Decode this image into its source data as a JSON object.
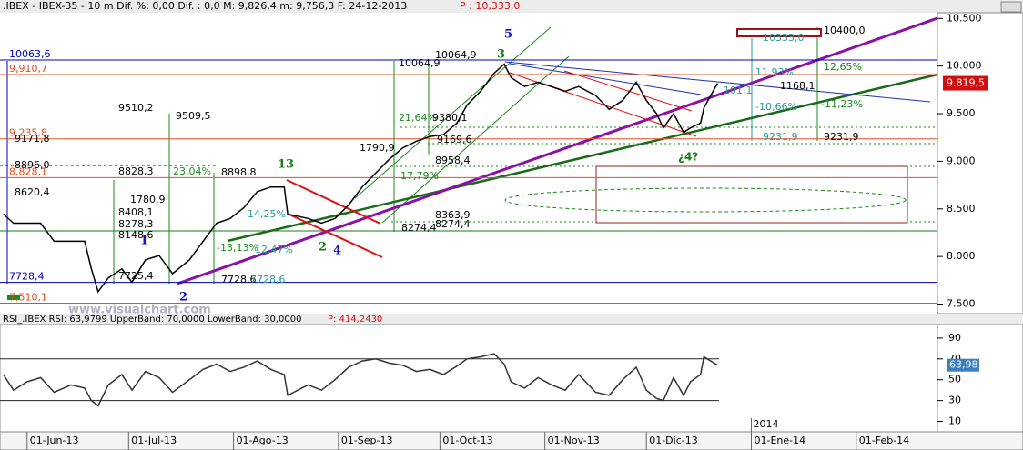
{
  "chart_data": [
    {
      "type": "line",
      "title": ".IBEX - IBEX-35 -  10 m Dif. %: 0,00 Dif. : 0,0 M: 9,826,4 m: 9,756,3 F: 24-12-2013 ",
      "title_price": "P : 10,333,0",
      "color": "#000000",
      "x": [
        "2013-05-25",
        "2013-05-28",
        "2013-06-01",
        "2013-06-05",
        "2013-06-09",
        "2013-06-14",
        "2013-06-18",
        "2013-06-20",
        "2013-06-22",
        "2013-06-25",
        "2013-06-29",
        "2013-07-02",
        "2013-07-06",
        "2013-07-10",
        "2013-07-14",
        "2013-07-19",
        "2013-07-23",
        "2013-07-27",
        "2013-07-31",
        "2013-08-04",
        "2013-08-08",
        "2013-08-12",
        "2013-08-16",
        "2013-08-17",
        "2013-08-23",
        "2013-08-27",
        "2013-08-31",
        "2013-09-04",
        "2013-09-08",
        "2013-09-12",
        "2013-09-16",
        "2013-09-20",
        "2013-09-24",
        "2013-09-28",
        "2013-10-02",
        "2013-10-06",
        "2013-10-09",
        "2013-10-13",
        "2013-10-17",
        "2013-10-20",
        "2013-10-22",
        "2013-10-26",
        "2013-10-30",
        "2013-11-03",
        "2013-11-07",
        "2013-11-11",
        "2013-11-16",
        "2013-11-20",
        "2013-11-24",
        "2013-11-28",
        "2013-12-01",
        "2013-12-04",
        "2013-12-06",
        "2013-12-09",
        "2013-12-12",
        "2013-12-14",
        "2013-12-17",
        "2013-12-18",
        "2013-12-22"
      ],
      "values": [
        8445,
        8350,
        8350,
        8350,
        8160,
        8160,
        8160,
        7870,
        7630,
        7775,
        7870,
        7730,
        7965,
        8010,
        7820,
        7965,
        8160,
        8350,
        8400,
        8510,
        8680,
        8730,
        8730,
        8445,
        8400,
        8350,
        8400,
        8540,
        8730,
        8875,
        9020,
        9140,
        9210,
        9260,
        9280,
        9400,
        9590,
        9735,
        9925,
        10020,
        9880,
        9785,
        9830,
        9785,
        9735,
        9785,
        9690,
        9545,
        9640,
        9830,
        9640,
        9500,
        9350,
        9500,
        9305,
        9350,
        9400,
        9560,
        9819.5
      ],
      "last_label": "9.819,5",
      "xlim": [
        "2013-05-24",
        "2014-02-25"
      ],
      "xticks": [
        {
          "value": "2013-06-01",
          "label": "01-Jun-13"
        },
        {
          "value": "2013-07-01",
          "label": "01-Jul-13"
        },
        {
          "value": "2013-08-01",
          "label": "01-Ago-13"
        },
        {
          "value": "2013-09-01",
          "label": "01-Sep-13"
        },
        {
          "value": "2013-10-01",
          "label": "01-Oct-13"
        },
        {
          "value": "2013-11-01",
          "label": "01-Nov-13"
        },
        {
          "value": "2013-12-01",
          "label": "01-Dic-13"
        },
        {
          "value": "2014-01-01",
          "label": "01-Ene-14"
        },
        {
          "value": "2014-02-01",
          "label": "01-Feb-14"
        }
      ],
      "year_label": "2014",
      "ylim": [
        7400,
        10560
      ],
      "yticks": [
        {
          "value": 7500,
          "label": "7.500"
        },
        {
          "value": 8000,
          "label": "8.000"
        },
        {
          "value": 8500,
          "label": "8.500"
        },
        {
          "value": 9000,
          "label": "9.000"
        },
        {
          "value": 9500,
          "label": "9.500"
        },
        {
          "value": 10000,
          "label": "10.000"
        },
        {
          "value": 10500,
          "label": "10.500"
        }
      ],
      "levels": [
        {
          "value": 10063.6,
          "label": "10063,6",
          "color": "#0000c0"
        },
        {
          "value": 9910.7,
          "label": "9,910,7",
          "color": "#e05020"
        },
        {
          "value": 9235.8,
          "label": "9,235,8",
          "color": "#e05020"
        },
        {
          "value": 8828.1,
          "label": "8,828,1",
          "color": "#e05020"
        },
        {
          "value": 7728.4,
          "label": "7728,4",
          "color": "#0000c0"
        },
        {
          "value": 7510.1,
          "label": "7,510,1",
          "color": "#e05020"
        }
      ],
      "annotations": [
        "10064,9",
        "10064,9",
        "9510,2",
        "9509,5",
        "21,64%",
        "9380,1",
        "9169,6",
        "1790,9",
        "8958,4",
        "17,79%",
        "8896,0",
        "8828,3",
        "23,04%",
        "8898,8",
        "8620,4",
        "1780,9",
        "8408,1",
        "8278,3",
        "8148,6",
        "14,25%",
        "-13,13%",
        "12,47%",
        "8363,9",
        "8274,4",
        "8274,4",
        "7725,4",
        "7728,6",
        "7728,6",
        "10333,0",
        "10400,0",
        "11,93%",
        "12,65%",
        "1168,1",
        "-10,66%",
        "-11,23%",
        "9231,9",
        "9231,9",
        "¿4?",
        "9171,8",
        "101,1"
      ],
      "wave_labels": [
        "5",
        "3",
        "13",
        "1",
        "2",
        "2",
        "4"
      ],
      "watermark": "www.visualchart.com"
    },
    {
      "type": "line",
      "title": "RSI_.IBEX RSI: 63,9799 UpperBand: 70,0000 LowerBand: 30,0000 ",
      "title_price": "P: 414,2430",
      "color": "#333333",
      "x": [
        "2013-05-25",
        "2013-05-28",
        "2013-06-01",
        "2013-06-05",
        "2013-06-09",
        "2013-06-14",
        "2013-06-18",
        "2013-06-20",
        "2013-06-22",
        "2013-06-25",
        "2013-06-29",
        "2013-07-02",
        "2013-07-06",
        "2013-07-10",
        "2013-07-14",
        "2013-07-19",
        "2013-07-23",
        "2013-07-27",
        "2013-07-31",
        "2013-08-04",
        "2013-08-08",
        "2013-08-12",
        "2013-08-16",
        "2013-08-17",
        "2013-08-23",
        "2013-08-27",
        "2013-08-31",
        "2013-09-04",
        "2013-09-08",
        "2013-09-12",
        "2013-09-16",
        "2013-09-20",
        "2013-09-24",
        "2013-09-28",
        "2013-10-02",
        "2013-10-06",
        "2013-10-09",
        "2013-10-13",
        "2013-10-17",
        "2013-10-20",
        "2013-10-22",
        "2013-10-26",
        "2013-10-30",
        "2013-11-03",
        "2013-11-07",
        "2013-11-11",
        "2013-11-16",
        "2013-11-20",
        "2013-11-24",
        "2013-11-28",
        "2013-12-01",
        "2013-12-04",
        "2013-12-06",
        "2013-12-09",
        "2013-12-12",
        "2013-12-14",
        "2013-12-17",
        "2013-12-18",
        "2013-12-22"
      ],
      "values": [
        55,
        40,
        48,
        52,
        38,
        45,
        42,
        30,
        25,
        45,
        55,
        40,
        58,
        52,
        38,
        50,
        60,
        65,
        58,
        62,
        68,
        60,
        55,
        35,
        45,
        40,
        50,
        62,
        68,
        70,
        66,
        64,
        58,
        60,
        55,
        63,
        70,
        72,
        75,
        65,
        48,
        42,
        52,
        45,
        40,
        55,
        38,
        35,
        50,
        62,
        40,
        32,
        30,
        52,
        35,
        48,
        55,
        72,
        63.98
      ],
      "last_label": "63,98",
      "bands": [
        70,
        30
      ],
      "ylim": [
        0,
        103
      ],
      "yticks": [
        10,
        30,
        50,
        70,
        90
      ]
    }
  ]
}
